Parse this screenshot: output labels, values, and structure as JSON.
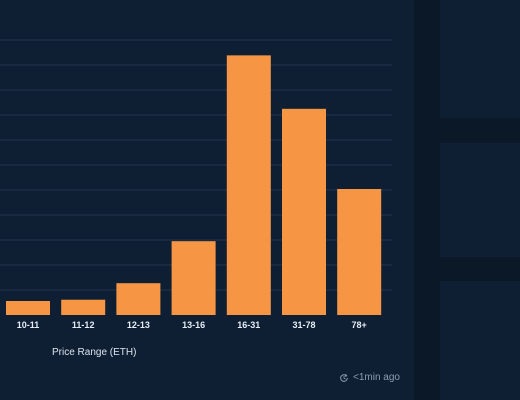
{
  "chart_data": {
    "type": "bar",
    "categories": [
      "10-11",
      "11-12",
      "12-13",
      "13-16",
      "16-31",
      "31-78",
      "78+"
    ],
    "values": [
      5.5,
      6,
      12.5,
      29,
      102,
      81,
      49.5
    ],
    "xlabel": "Price Range (ETH)",
    "ylabel": "",
    "ylim": [
      0,
      110
    ],
    "grid": true,
    "bar_color": "#f69644"
  },
  "footer": {
    "updated_text": "<1min ago",
    "refresh_icon": "refresh-clock-icon"
  },
  "colors": {
    "background": "#0a1828",
    "panel": "#0f1f33",
    "grid": "#22354b"
  }
}
